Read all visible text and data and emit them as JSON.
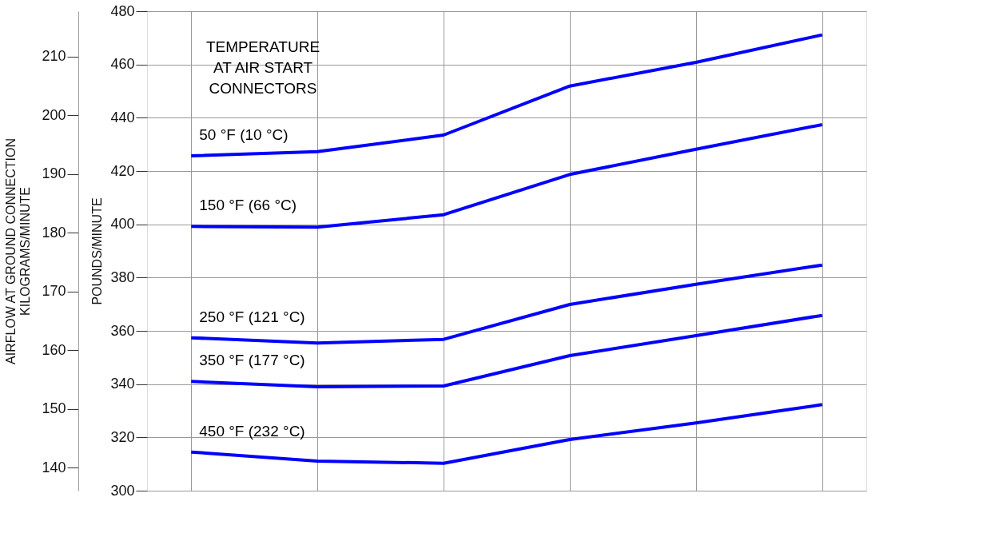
{
  "chart_data": {
    "type": "line",
    "categories": [
      null,
      null,
      null,
      null,
      null,
      null
    ],
    "ylabel": "POUNDS/MINUTE",
    "y2label": "AIRFLOW AT GROUND CONNECTION\nKILOGRAMS/MINUTE",
    "ylim": [
      300,
      480
    ],
    "yticks": [
      300,
      320,
      340,
      360,
      380,
      400,
      420,
      440,
      460,
      480
    ],
    "y2lim": [
      136.08,
      217.72
    ],
    "y2ticks": [
      140,
      150,
      160,
      170,
      180,
      190,
      200,
      210
    ],
    "annotations": [
      "TEMPERATURE\nAT AIR START\nCONNECTORS"
    ],
    "grid": true,
    "tick_labels": "y",
    "marker": "none",
    "line_style": "solid",
    "series": [
      {
        "name": "50 °F (10 °C)",
        "color": "#0000ff",
        "values": [
          425.7,
          427.3,
          433.5,
          451.9,
          460.8,
          471.1
        ]
      },
      {
        "name": "150 °F (66 °C)",
        "color": "#0000ff",
        "values": [
          399.2,
          398.9,
          403.6,
          418.7,
          428.2,
          437.4
        ]
      },
      {
        "name": "250 °F (121 °C)",
        "color": "#0000ff",
        "values": [
          357.4,
          355.4,
          356.8,
          369.9,
          377.5,
          384.7
        ]
      },
      {
        "name": "350 °F (177 °C)",
        "color": "#0000ff",
        "values": [
          341.0,
          339.0,
          339.3,
          350.7,
          358.2,
          365.8
        ]
      },
      {
        "name": "450 °F (232 °C)",
        "color": "#0000ff",
        "values": [
          314.5,
          311.1,
          310.3,
          319.2,
          325.4,
          332.3
        ]
      }
    ]
  }
}
